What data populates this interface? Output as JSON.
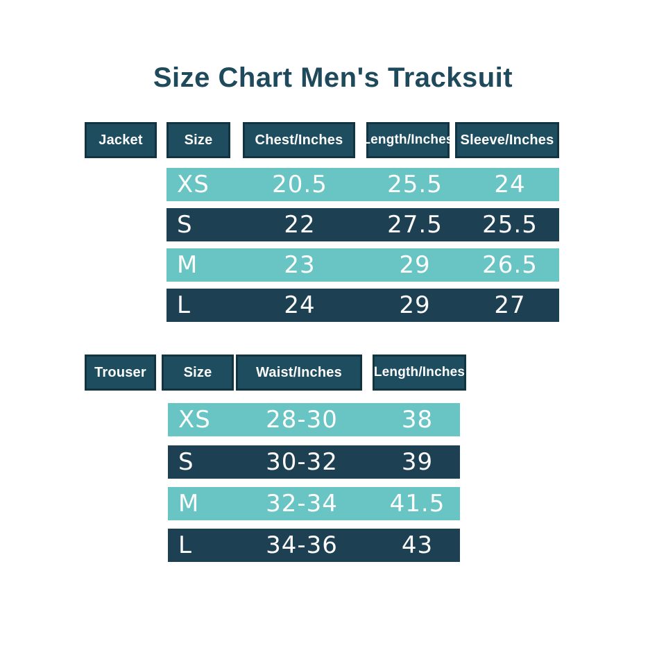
{
  "title": "Size Chart Men's Tracksuit",
  "colors": {
    "header_fill": "#1e4d5f",
    "header_border": "#123340",
    "dark_row": "#1d4053",
    "light_row": "#69c5c4",
    "title_text": "#1e4a5c",
    "row_text": "#fdfdfd",
    "background": "#ffffff"
  },
  "chart_data": [
    {
      "type": "table",
      "title": "Jacket",
      "columns": [
        "Size",
        "Chest/Inches",
        "Length/Inches",
        "Sleeve/Inches"
      ],
      "rows": [
        [
          "XS",
          "20.5",
          "25.5",
          "24"
        ],
        [
          "S",
          "22",
          "27.5",
          "25.5"
        ],
        [
          "M",
          "23",
          "29",
          "26.5"
        ],
        [
          "L",
          "24",
          "29",
          "27"
        ]
      ],
      "row_styles": [
        "light",
        "dark",
        "light",
        "dark"
      ]
    },
    {
      "type": "table",
      "title": "Trouser",
      "columns": [
        "Size",
        "Waist/Inches",
        "Length/Inches"
      ],
      "rows": [
        [
          "XS",
          "28-30",
          "38"
        ],
        [
          "S",
          "30-32",
          "39"
        ],
        [
          "M",
          "32-34",
          "41.5"
        ],
        [
          "L",
          "34-36",
          "43"
        ]
      ],
      "row_styles": [
        "light",
        "dark",
        "light",
        "dark"
      ]
    }
  ]
}
